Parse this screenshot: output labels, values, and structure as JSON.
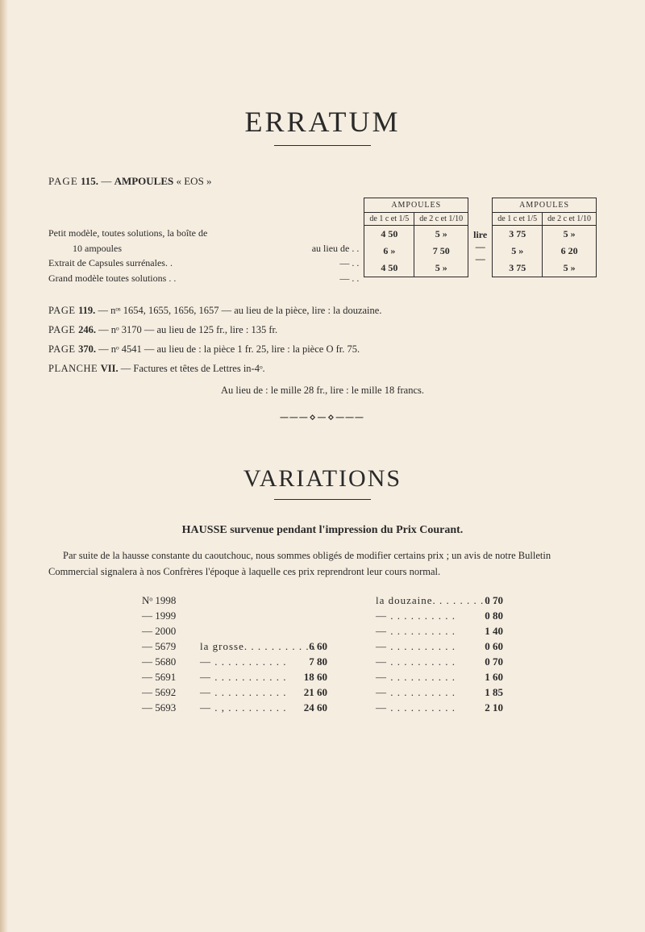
{
  "titles": {
    "erratum": "ERRATUM",
    "variations": "VARIATIONS"
  },
  "erratum": {
    "page115": {
      "lead": "PAGE",
      "num": "115.",
      "dash": " — ",
      "bold": "AMPOULES",
      "tail": " « EOS »"
    },
    "table": {
      "group_head": "AMPOULES",
      "sub1": "de 1 c et 1/5",
      "sub2": "de 2 c et 1/10",
      "lire": "lire",
      "rows": [
        {
          "label": "Petit modèle, toutes solutions, la boîte de",
          "label2": "10 ampoules",
          "suffix": "au lieu de . .",
          "c1": "4 50",
          "c2": "5  »",
          "c3": "3 75",
          "c4": "5  »"
        },
        {
          "label": "Extrait de Capsules surrénales. .",
          "suffix": "—        . .",
          "c1": "6  »",
          "c2": "7 50",
          "c3": "5  »",
          "c4": "6 20"
        },
        {
          "label": "Grand modèle toutes solutions . .",
          "suffix": "—        . .",
          "c1": "4 50",
          "c2": "5  »",
          "c3": "3 75",
          "c4": "5  »"
        }
      ]
    },
    "lines": {
      "l1": {
        "lead": "PAGE ",
        "num": "119.",
        "text": " — nᵒˢ 1654, 1655, 1656, 1657 — au lieu de la pièce, lire : la douzaine."
      },
      "l2": {
        "lead": "PAGE ",
        "num": "246.",
        "text": " — nᵒ 3170 — au lieu de 125 fr., lire : 135 fr."
      },
      "l3": {
        "lead": "PAGE ",
        "num": "370.",
        "text": " — nᵒ 4541 — au lieu de : la pièce 1 fr. 25, lire : la pièce O fr. 75."
      },
      "l4": {
        "lead": "PLANCHE ",
        "num": "VII.",
        "text": " — Factures et têtes de Lettres in-4ᵒ."
      }
    },
    "center": "Au lieu de : le mille 28 fr., lire : le mille 18 francs."
  },
  "variations": {
    "heading": "HAUSSE survenue pendant l'impression du Prix Courant.",
    "body": "Par suite de la hausse constante du caoutchouc, nous sommes obligés de modifier certains prix ; un avis de notre Bulletin Commercial signalera à nos Confrères l'époque à laquelle ces prix reprendront leur cours normal.",
    "left_col": [
      {
        "no": "Nᵒ 1998",
        "mid": "",
        "price": ""
      },
      {
        "no": "— 1999",
        "mid": "",
        "price": ""
      },
      {
        "no": "— 2000",
        "mid": "",
        "price": ""
      },
      {
        "no": "— 5679",
        "mid": "la grosse. . . . . . . . . . .",
        "price": "6 60"
      },
      {
        "no": "— 5680",
        "mid": "—    . . . . . . . . . . .",
        "price": "7 80"
      },
      {
        "no": "— 5691",
        "mid": "—    . . . . . . . . . . .",
        "price": "18 60"
      },
      {
        "no": "— 5692",
        "mid": "—    . . . . . . . . . . .",
        "price": "21 60"
      },
      {
        "no": "— 5693",
        "mid": "—    . , . . . . . . . . .",
        "price": "24 60"
      }
    ],
    "right_col": [
      {
        "label": "la douzaine. . . . . . . . . .",
        "price": "0 70"
      },
      {
        "label": "—       . . . . . . . . . .",
        "price": "0 80"
      },
      {
        "label": "—       . . . . . . . . . .",
        "price": "1 40"
      },
      {
        "label": "—       . . . . . . . . . .",
        "price": "0 60"
      },
      {
        "label": "—       . . . . . . . . . .",
        "price": "0 70"
      },
      {
        "label": "—       . . . . . . . . . .",
        "price": "1 60"
      },
      {
        "label": "—       . . . . . . . . . .",
        "price": "1 85"
      },
      {
        "label": "—       . . . . . . . . . .",
        "price": "2 10"
      }
    ]
  },
  "colors": {
    "bg": "#f5ede0",
    "text": "#2a2a2a"
  }
}
